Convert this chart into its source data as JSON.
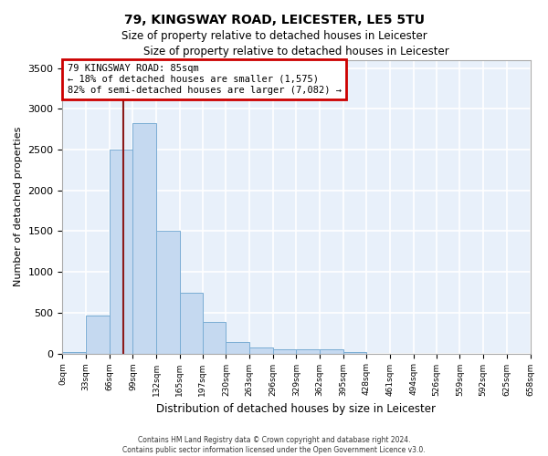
{
  "title_line1": "79, KINGSWAY ROAD, LEICESTER, LE5 5TU",
  "title_line2": "Size of property relative to detached houses in Leicester",
  "xlabel": "Distribution of detached houses by size in Leicester",
  "ylabel": "Number of detached properties",
  "bar_color": "#c5d9f0",
  "bar_edge_color": "#7aadd4",
  "background_color": "#e8f0fa",
  "grid_color": "#ffffff",
  "bin_edges": [
    0,
    33,
    66,
    99,
    132,
    165,
    197,
    230,
    263,
    296,
    329,
    362,
    395,
    428,
    461,
    494,
    526,
    559,
    592,
    625,
    658
  ],
  "bin_labels": [
    "0sqm",
    "33sqm",
    "66sqm",
    "99sqm",
    "132sqm",
    "165sqm",
    "197sqm",
    "230sqm",
    "263sqm",
    "296sqm",
    "329sqm",
    "362sqm",
    "395sqm",
    "428sqm",
    "461sqm",
    "494sqm",
    "526sqm",
    "559sqm",
    "592sqm",
    "625sqm",
    "658sqm"
  ],
  "bar_heights": [
    20,
    460,
    2500,
    2820,
    1510,
    740,
    390,
    145,
    75,
    50,
    50,
    50,
    20,
    0,
    0,
    0,
    0,
    0,
    0,
    0
  ],
  "ylim": [
    0,
    3600
  ],
  "yticks": [
    0,
    500,
    1000,
    1500,
    2000,
    2500,
    3000,
    3500
  ],
  "property_size": 85,
  "property_label": "79 KINGSWAY ROAD: 85sqm",
  "annotation_line1": "← 18% of detached houses are smaller (1,575)",
  "annotation_line2": "82% of semi-detached houses are larger (7,082) →",
  "vline_color": "#8b1a1a",
  "annotation_box_edge": "#cc0000",
  "footer_line1": "Contains HM Land Registry data © Crown copyright and database right 2024.",
  "footer_line2": "Contains public sector information licensed under the Open Government Licence v3.0."
}
